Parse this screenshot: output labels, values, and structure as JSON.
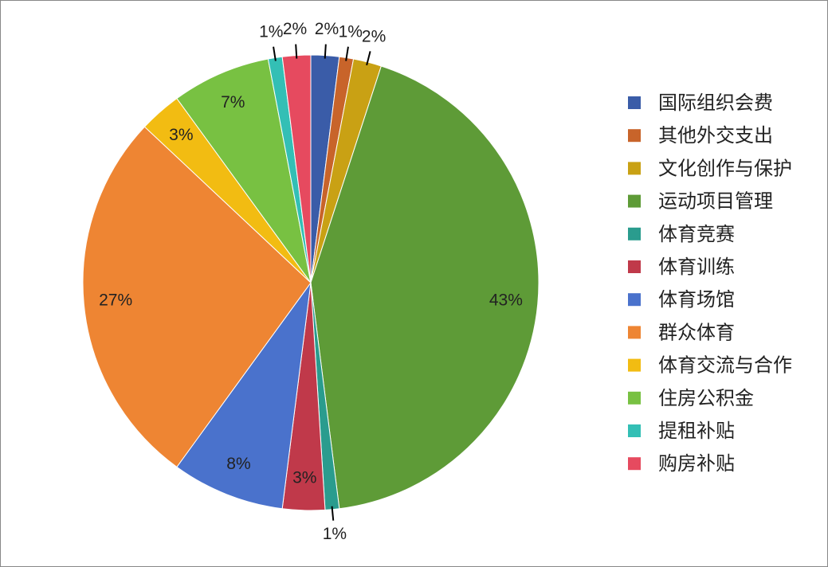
{
  "chart_data": {
    "type": "pie",
    "categories": [
      "国际组织会费",
      "其他外交支出",
      "文化创作与保护",
      "运动项目管理",
      "体育竞赛",
      "体育训练",
      "体育场馆",
      "群众体育",
      "体育交流与合作",
      "住房公积金",
      "提租补贴",
      "购房补贴"
    ],
    "values": [
      2,
      1,
      2,
      43,
      1,
      3,
      8,
      27,
      3,
      7,
      1,
      2
    ],
    "value_labels": [
      "2%",
      "1%",
      "2%",
      "43%",
      "1%",
      "3%",
      "8%",
      "27%",
      "3%",
      "7%",
      "1%",
      "2%"
    ],
    "colors": [
      "#3a5ca8",
      "#c8642a",
      "#c9a114",
      "#5e9b37",
      "#2a9c8e",
      "#c0394a",
      "#4a72cc",
      "#ee8533",
      "#f2bc12",
      "#78c142",
      "#33bfb5",
      "#e64a5f"
    ],
    "legend": "right"
  }
}
